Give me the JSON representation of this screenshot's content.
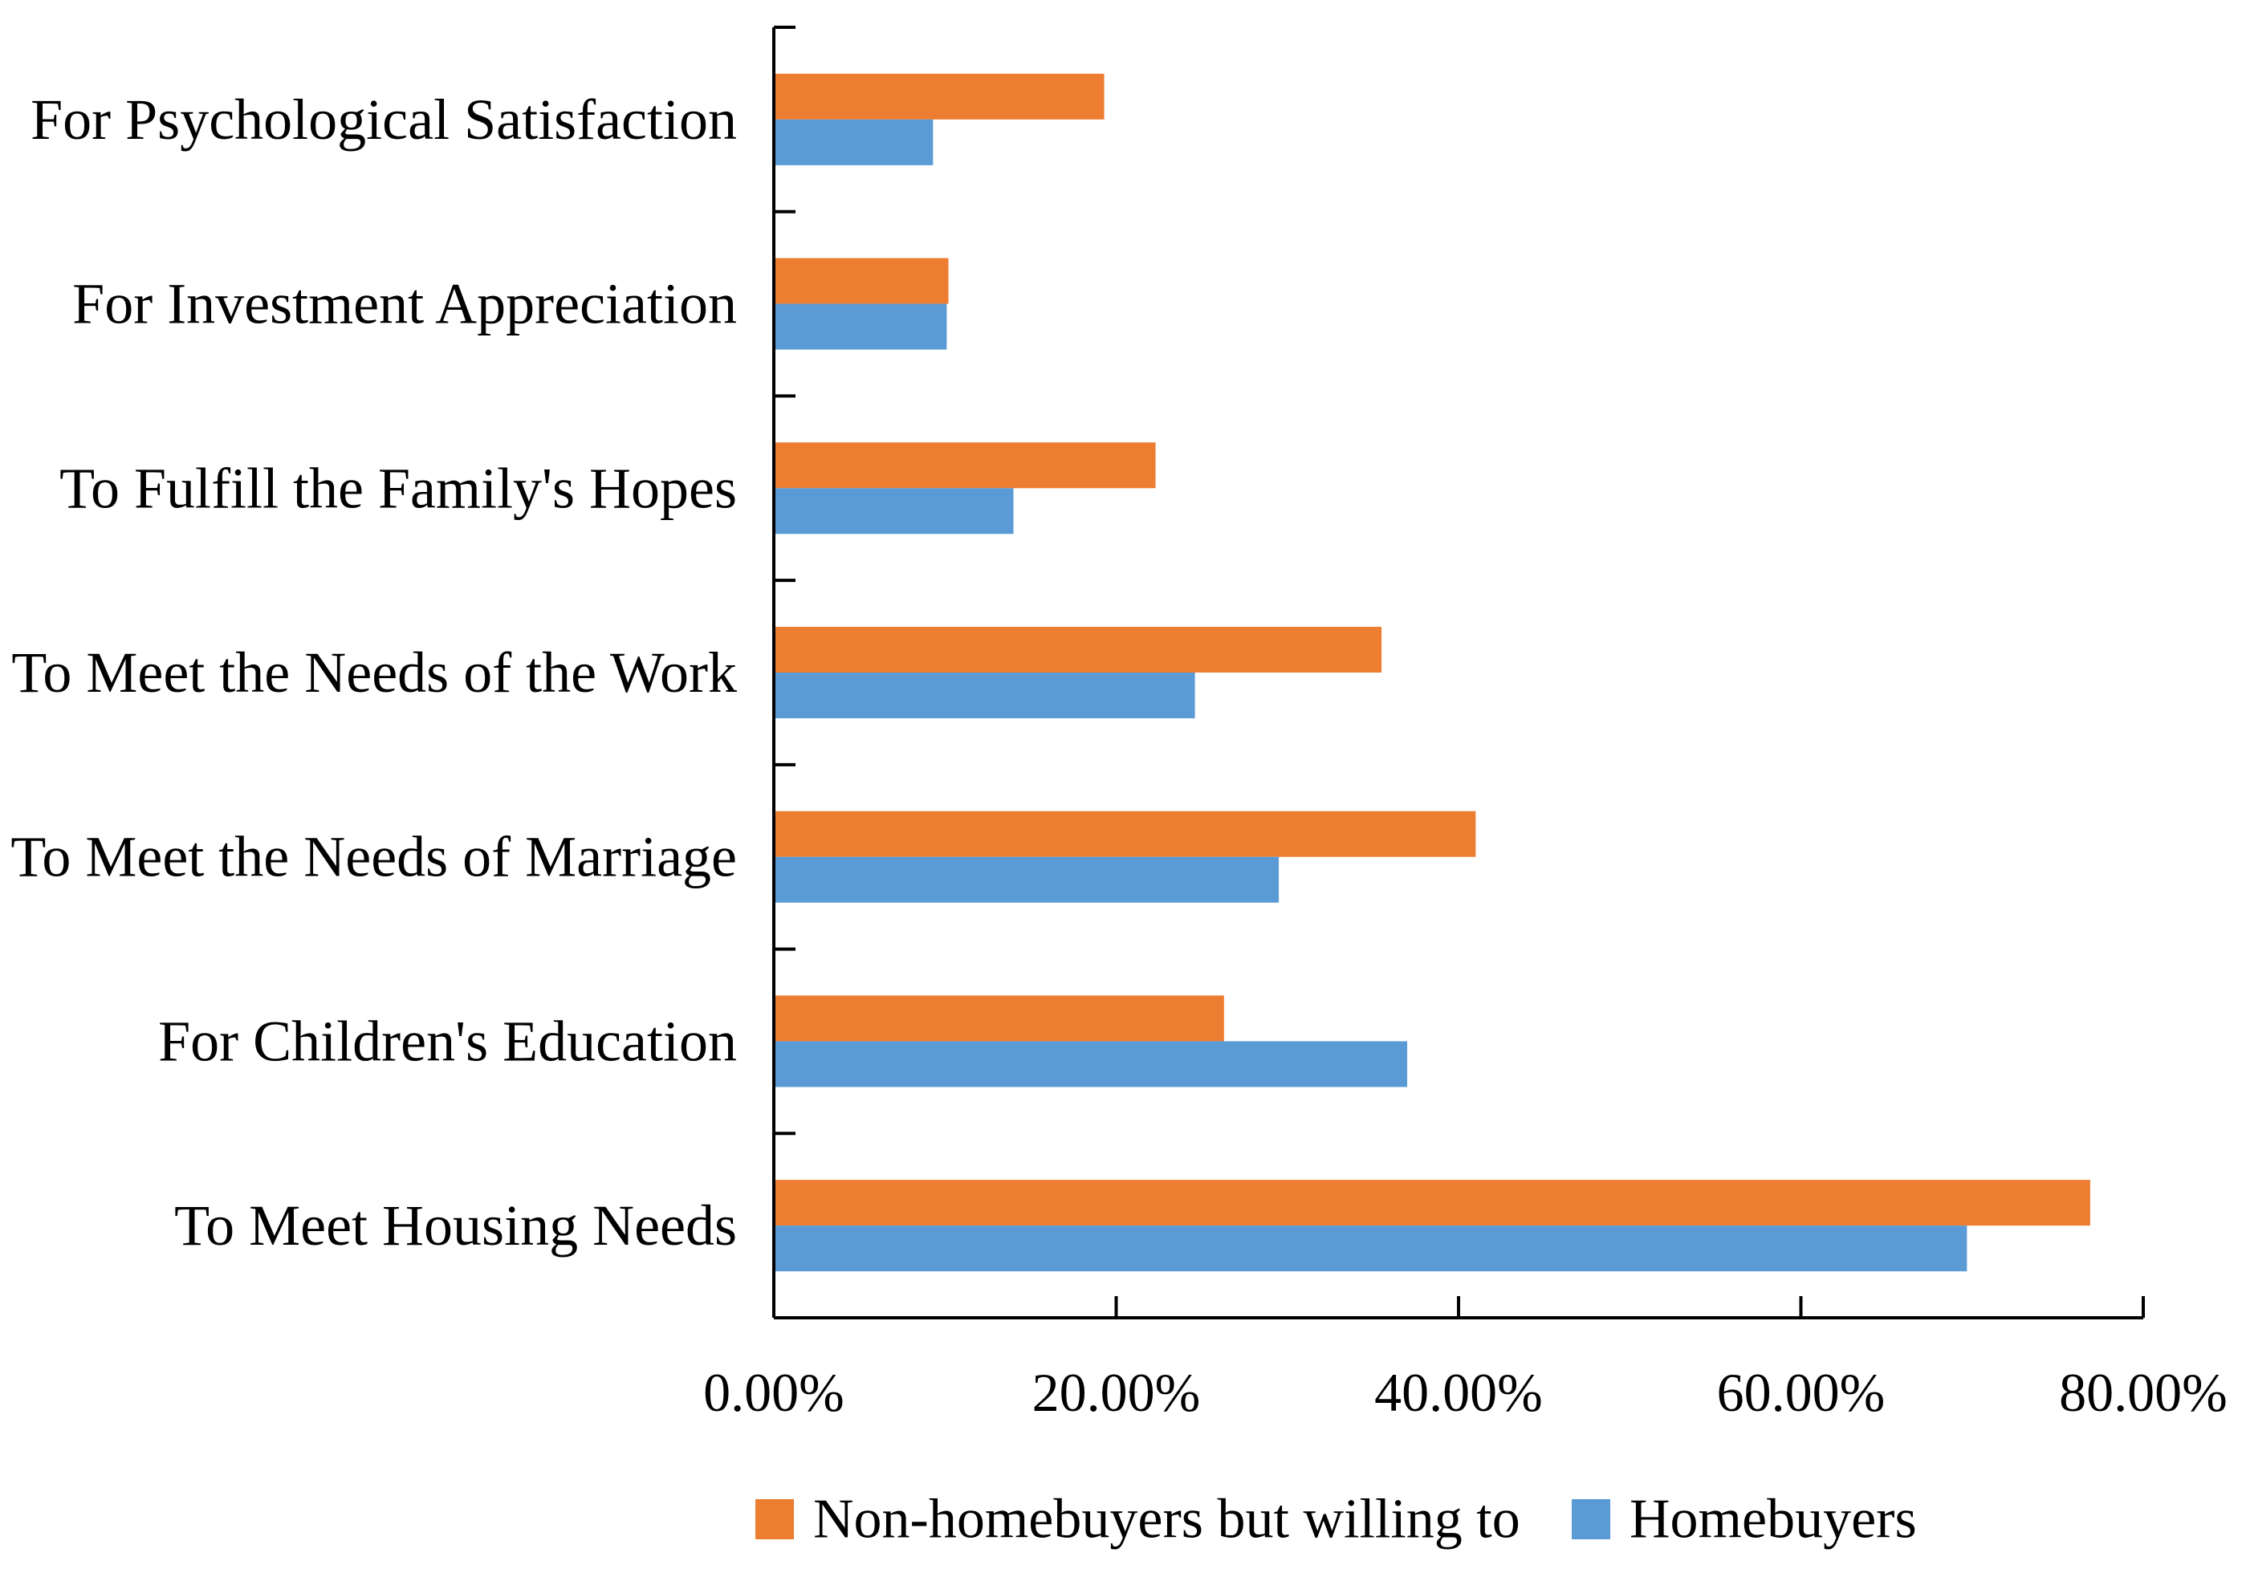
{
  "chart_data": {
    "type": "bar",
    "orientation": "horizontal",
    "title": "",
    "xlabel": "",
    "ylabel": "",
    "categories": [
      "For Psychological Satisfaction",
      "For Investment Appreciation",
      "To Fulfill the Family's Hopes",
      "To Meet the Needs of the Work",
      "To Meet the Needs of Marriage",
      "For Children's Education",
      "To Meet Housing Needs"
    ],
    "series": [
      {
        "name": "Non-homebuyers but willing to",
        "color": "#ED7D31",
        "values": [
          19.3,
          10.2,
          22.3,
          35.5,
          41.0,
          26.3,
          76.9
        ]
      },
      {
        "name": "Homebuyers",
        "color": "#5B9BD5",
        "values": [
          9.3,
          10.1,
          14.0,
          24.6,
          29.5,
          37.0,
          69.7
        ]
      }
    ],
    "xlim": [
      0,
      80
    ],
    "xticks": [
      0,
      20,
      40,
      60,
      80
    ],
    "xtick_labels": [
      "0.00%",
      "20.00%",
      "40.00%",
      "60.00%",
      "80.00%"
    ],
    "grid": false,
    "legend_position": "bottom"
  }
}
